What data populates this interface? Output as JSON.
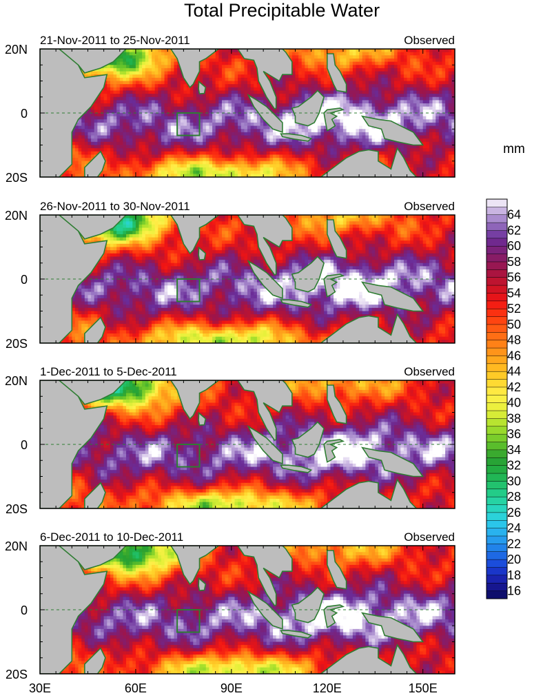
{
  "chart_data": {
    "type": "heatmap",
    "title": "Total Precipitable Water",
    "units": "mm",
    "x_ticks": [
      "30E",
      "60E",
      "90E",
      "120E",
      "150E"
    ],
    "y_ticks": [
      "20N",
      "0",
      "20S"
    ],
    "xlim": [
      30,
      160
    ],
    "ylim": [
      -20,
      20
    ],
    "colorbar": {
      "min": 15,
      "max": 66,
      "labels": [
        64,
        62,
        60,
        58,
        56,
        54,
        52,
        50,
        48,
        46,
        44,
        42,
        40,
        38,
        36,
        34,
        32,
        30,
        28,
        26,
        24,
        22,
        20,
        18,
        16
      ]
    },
    "box_region": {
      "lon": [
        73,
        80
      ],
      "lat": [
        -7,
        0
      ]
    },
    "panels": [
      {
        "period": "21-Nov-2011 to 25-Nov-2011",
        "label": "Observed"
      },
      {
        "period": "26-Nov-2011 to 30-Nov-2011",
        "label": "Observed"
      },
      {
        "period": "1-Dec-2011 to 5-Dec-2011",
        "label": "Observed"
      },
      {
        "period": "6-Dec-2011 to 10-Dec-2011",
        "label": "Observed"
      }
    ]
  },
  "colors": {
    "land": "#bdbdbd",
    "coast": "#2e7d32",
    "box": "#2e7d32"
  }
}
